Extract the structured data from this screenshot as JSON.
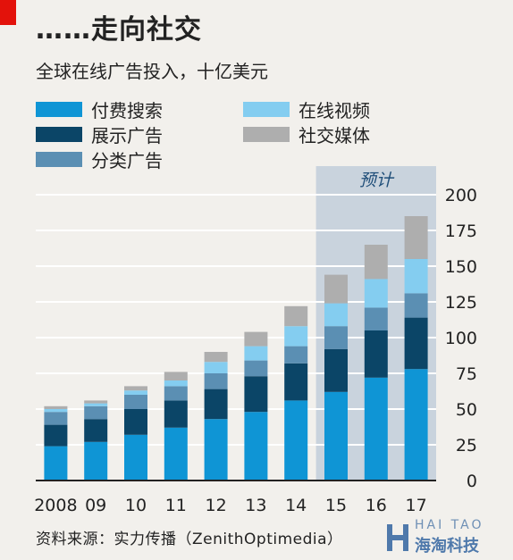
{
  "header": {
    "title": "……走向社交",
    "subtitle": "全球在线广告投入，十亿美元"
  },
  "colors": {
    "accent_red": "#e3120b",
    "forecast_shade": "#c9d3dd",
    "grid": "#ffffff",
    "paid_search": "#0f95d5",
    "display": "#0b4567",
    "classified": "#5b8fb3",
    "online_video": "#84cdf0",
    "social_media": "#aeaeae"
  },
  "legend": [
    {
      "label": "付费搜索",
      "color": "#0f95d5",
      "icon": "swatch"
    },
    {
      "label": "在线视频",
      "color": "#84cdf0",
      "icon": "swatch"
    },
    {
      "label": "展示广告",
      "color": "#0b4567",
      "icon": "swatch"
    },
    {
      "label": "社交媒体",
      "color": "#aeaeae",
      "icon": "swatch"
    },
    {
      "label": "分类广告",
      "color": "#5b8fb3",
      "icon": "swatch"
    }
  ],
  "chart_data": {
    "type": "bar",
    "stacked": true,
    "categories": [
      "2008",
      "09",
      "10",
      "11",
      "12",
      "13",
      "14",
      "15",
      "16",
      "17"
    ],
    "series": [
      {
        "name": "付费搜索",
        "color": "#0f95d5",
        "values": [
          24,
          27,
          32,
          37,
          43,
          48,
          56,
          62,
          72,
          78
        ]
      },
      {
        "name": "展示广告",
        "color": "#0b4567",
        "values": [
          15,
          16,
          18,
          19,
          21,
          25,
          26,
          30,
          33,
          36
        ]
      },
      {
        "name": "分类广告",
        "color": "#5b8fb3",
        "values": [
          9,
          9,
          10,
          10,
          11,
          11,
          12,
          16,
          16,
          17
        ]
      },
      {
        "name": "在线视频",
        "color": "#84cdf0",
        "values": [
          2,
          2,
          3,
          4,
          8,
          10,
          14,
          16,
          20,
          24
        ]
      },
      {
        "name": "社交媒体",
        "color": "#aeaeae",
        "values": [
          2,
          2,
          3,
          6,
          7,
          10,
          14,
          20,
          24,
          30
        ]
      }
    ],
    "ylim": [
      0,
      200
    ],
    "yticks": [
      0,
      25,
      50,
      75,
      100,
      125,
      150,
      175,
      200
    ],
    "y_axis_position": "right",
    "grid": true,
    "forecast": {
      "label": "预计",
      "from_category": "15",
      "to_category": "17"
    }
  },
  "footer": {
    "source": "资料来源：实力传播（ZenithOptimedia）"
  },
  "watermark": {
    "line1": "HAI TAO",
    "line2": "海淘科技"
  }
}
